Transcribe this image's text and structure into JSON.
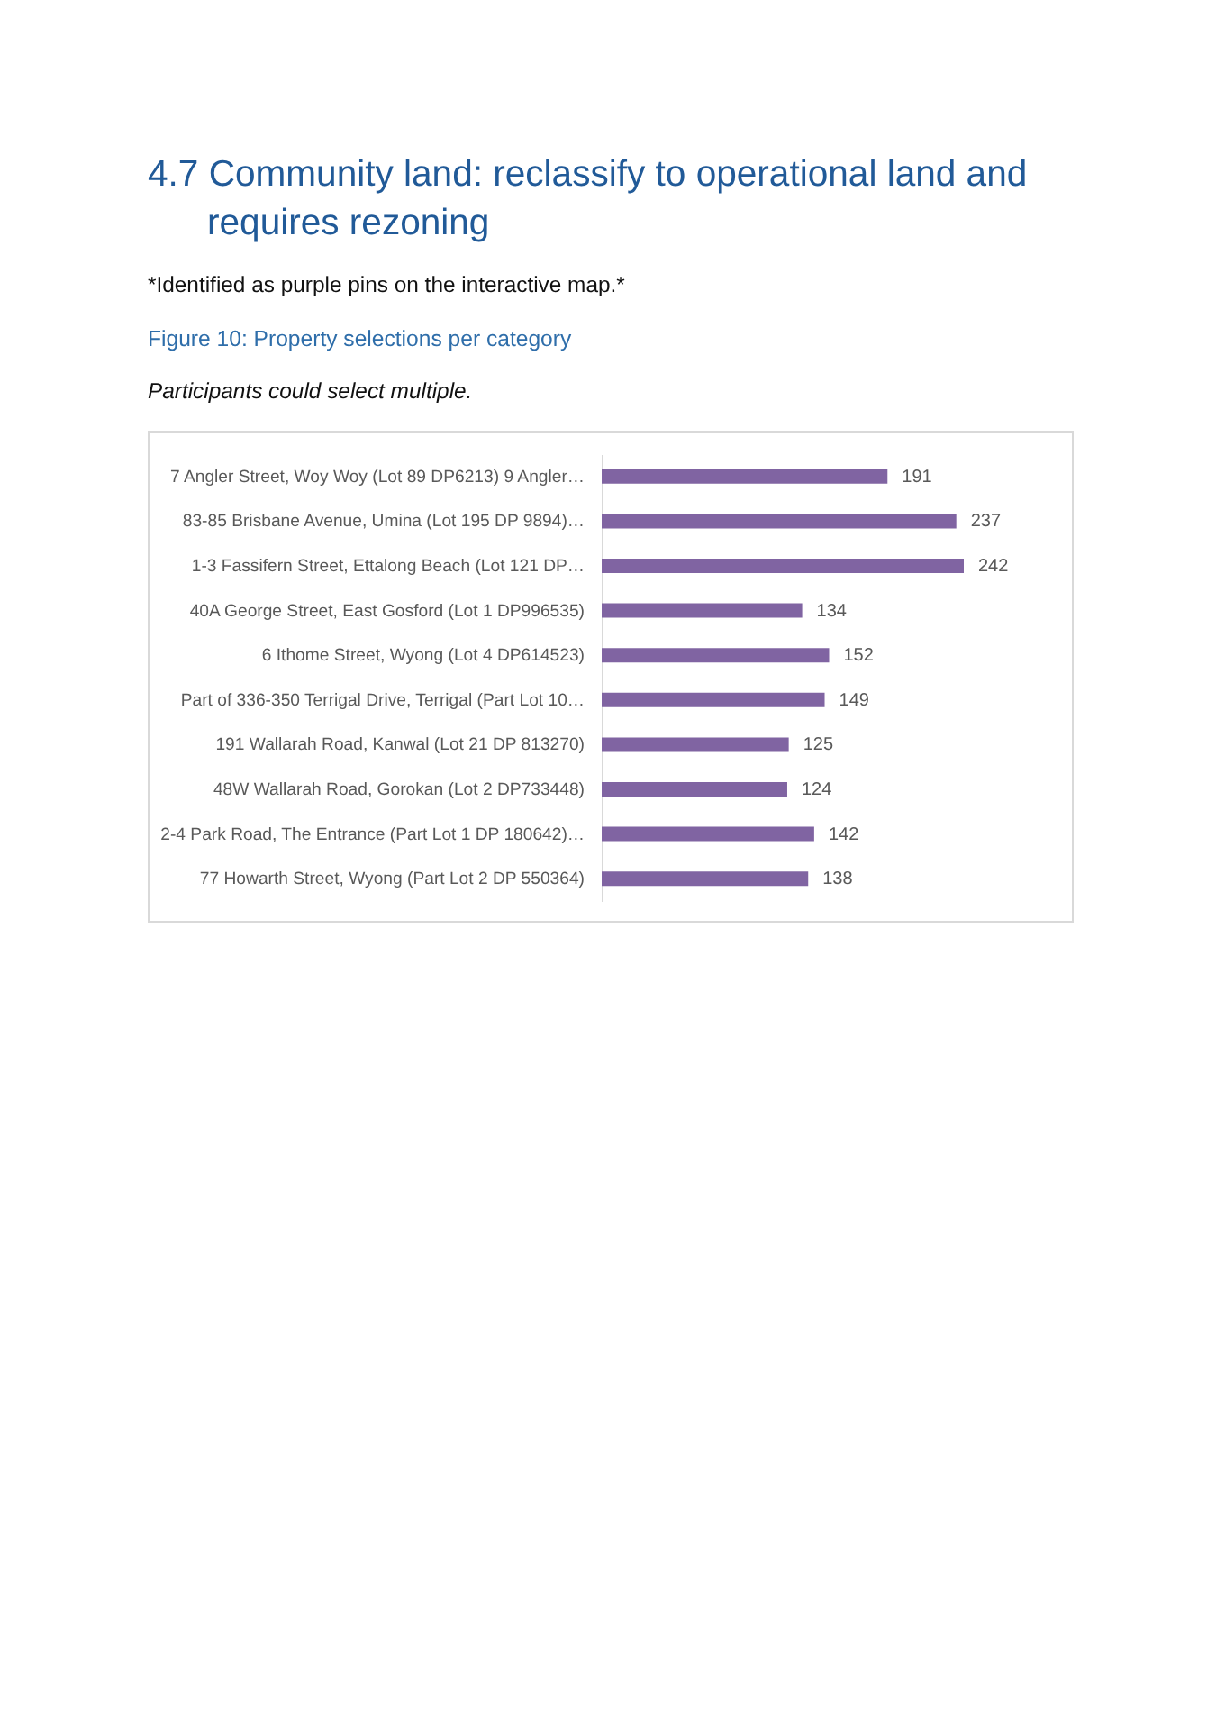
{
  "chart_data": {
    "type": "bar",
    "orientation": "horizontal",
    "title": "4.7 Community land: reclassify to operational land and requires rezoning",
    "subtitle": "Figure 10: Property selections per category",
    "annotations": [
      "*Identified as purple pins on the interactive map.*",
      "Participants could select multiple."
    ],
    "categories": [
      "7 Angler Street, Woy Woy (Lot 89 DP6213)  9 Angler…",
      "83-85 Brisbane Avenue, Umina (Lot 195 DP 9894)…",
      "1-3 Fassifern Street, Ettalong Beach (Lot 121 DP…",
      "40A George Street, East Gosford (Lot 1 DP996535)",
      "6 Ithome Street, Wyong (Lot 4 DP614523)",
      "Part of 336-350 Terrigal Drive, Terrigal (Part Lot 10…",
      "191 Wallarah Road, Kanwal (Lot 21 DP 813270)",
      "48W Wallarah Road, Gorokan (Lot 2 DP733448)",
      "2-4 Park Road, The Entrance (Part Lot 1 DP 180642)…",
      "77 Howarth Street, Wyong (Part Lot 2 DP 550364)"
    ],
    "values": [
      191,
      237,
      242,
      134,
      152,
      149,
      125,
      124,
      142,
      138
    ],
    "color": "#8064a2",
    "data_labels": true
  }
}
